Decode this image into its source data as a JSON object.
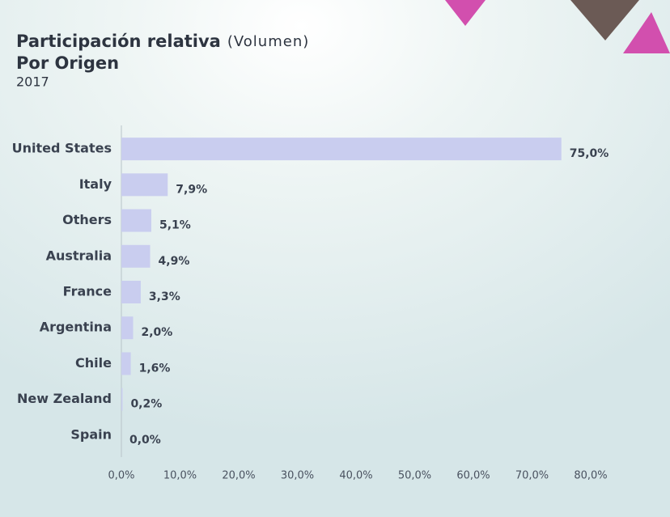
{
  "chart_data": {
    "type": "bar",
    "orientation": "horizontal",
    "title": "Participación relativa",
    "title_note": "(Volumen)",
    "subtitle": "Por Origen",
    "year": "2017",
    "categories": [
      "United States",
      "Italy",
      "Others",
      "Australia",
      "France",
      "Argentina",
      "Chile",
      "New Zealand",
      "Spain"
    ],
    "values": [
      75.0,
      7.9,
      5.1,
      4.9,
      3.3,
      2.0,
      1.6,
      0.2,
      0.0
    ],
    "value_labels": [
      "75,0%",
      "7,9%",
      "5,1%",
      "4,9%",
      "3,3%",
      "2,0%",
      "1,6%",
      "0,2%",
      "0,0%"
    ],
    "color": "#c9cdef",
    "xlim": [
      0,
      80
    ],
    "xticks": [
      {
        "value": 0,
        "label": "0,0%"
      },
      {
        "value": 10,
        "label": "10,0%"
      },
      {
        "value": 20,
        "label": "20,0%"
      },
      {
        "value": 30,
        "label": "30,0%"
      },
      {
        "value": 40,
        "label": "40,0%"
      },
      {
        "value": 50,
        "label": "50,0%"
      },
      {
        "value": 60,
        "label": "60,0%"
      },
      {
        "value": 70,
        "label": "70,0%"
      },
      {
        "value": 80,
        "label": "80,0%"
      }
    ],
    "grid": false
  }
}
